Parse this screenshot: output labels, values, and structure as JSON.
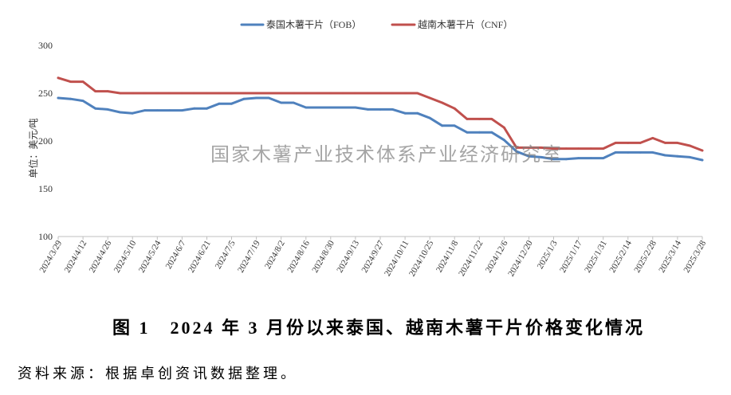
{
  "chart_data": {
    "type": "line",
    "title": "图 1　2024 年 3 月份以来泰国、越南木薯干片价格变化情况",
    "xlabel": "",
    "ylabel": "单位：美元/吨",
    "ylim": [
      100,
      300
    ],
    "yticks": [
      100,
      150,
      200,
      250,
      300
    ],
    "xticks": [
      "2024/3/29",
      "2024/4/12",
      "2024/4/26",
      "2024/5/10",
      "2024/5/24",
      "2024/6/7",
      "2024/6/21",
      "2024/7/5",
      "2024/7/19",
      "2024/8/2",
      "2024/8/16",
      "2024/8/30",
      "2024/9/13",
      "2024/9/27",
      "2024/10/11",
      "2024/10/25",
      "2024/11/8",
      "2024/11/22",
      "2024/12/6",
      "2024/12/20",
      "2025/1/3",
      "2025/1/17",
      "2025/1/31",
      "2025/2/14",
      "2025/2/28",
      "2025/3/14",
      "2025/3/28"
    ],
    "x": [
      "2024/3/29",
      "2024/4/5",
      "2024/4/12",
      "2024/4/19",
      "2024/4/26",
      "2024/5/3",
      "2024/5/10",
      "2024/5/17",
      "2024/5/24",
      "2024/5/31",
      "2024/6/7",
      "2024/6/14",
      "2024/6/21",
      "2024/6/28",
      "2024/7/5",
      "2024/7/12",
      "2024/7/19",
      "2024/7/26",
      "2024/8/2",
      "2024/8/9",
      "2024/8/16",
      "2024/8/23",
      "2024/8/30",
      "2024/9/6",
      "2024/9/13",
      "2024/9/20",
      "2024/9/27",
      "2024/10/4",
      "2024/10/11",
      "2024/10/18",
      "2024/10/25",
      "2024/11/1",
      "2024/11/8",
      "2024/11/15",
      "2024/11/22",
      "2024/11/29",
      "2024/12/6",
      "2024/12/13",
      "2024/12/20",
      "2024/12/27",
      "2025/1/3",
      "2025/1/10",
      "2025/1/17",
      "2025/1/24",
      "2025/1/31",
      "2025/2/7",
      "2025/2/14",
      "2025/2/21",
      "2025/2/28",
      "2025/3/7",
      "2025/3/14",
      "2025/3/21",
      "2025/3/28"
    ],
    "series": [
      {
        "name": "泰国木薯干片（FOB）",
        "color": "#4F81BD",
        "values": [
          245,
          244,
          242,
          234,
          233,
          230,
          229,
          232,
          232,
          232,
          232,
          234,
          234,
          239,
          239,
          244,
          245,
          245,
          240,
          240,
          235,
          235,
          235,
          235,
          235,
          233,
          233,
          233,
          229,
          229,
          224,
          216,
          216,
          209,
          209,
          209,
          201,
          189,
          184,
          183,
          181,
          181,
          182,
          182,
          182,
          188,
          188,
          188,
          188,
          185,
          184,
          183,
          180
        ]
      },
      {
        "name": "越南木薯干片（CNF）",
        "color": "#C0504D",
        "values": [
          266,
          262,
          262,
          252,
          252,
          250,
          250,
          250,
          250,
          250,
          250,
          250,
          250,
          250,
          250,
          250,
          250,
          250,
          250,
          250,
          250,
          250,
          250,
          250,
          250,
          250,
          250,
          250,
          250,
          250,
          245,
          240,
          234,
          223,
          223,
          223,
          214,
          193,
          193,
          193,
          192,
          192,
          192,
          192,
          192,
          198,
          198,
          198,
          203,
          198,
          198,
          195,
          190
        ]
      }
    ],
    "grid": false,
    "legend_position": "top"
  },
  "watermark": "国家木薯产业技术体系产业经济研究室",
  "source_note": "资料来源：根据卓创资讯数据整理。"
}
